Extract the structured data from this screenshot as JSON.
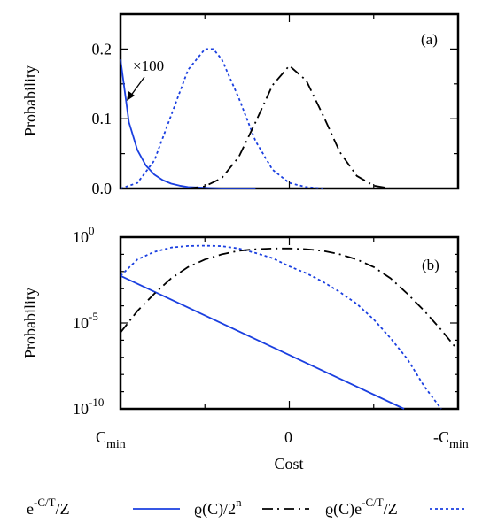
{
  "colors": {
    "blue": "#1a3fe0",
    "black": "#000000"
  },
  "figure": {
    "xlabel": "Cost",
    "x_ticklabels": {
      "cmin_base": "C",
      "cmin_sub": "min",
      "zero": "0",
      "neg_cmin_base": "-C",
      "neg_cmin_sub": "min"
    }
  },
  "legend": {
    "entries": [
      {
        "text_main": "e",
        "text_sup": "-C/T",
        "text_tail": "/Z",
        "line": "solid",
        "color": "#1a3fe0"
      },
      {
        "text_main": "ϱ(C)/2",
        "text_sup": "n",
        "text_tail": "",
        "line": "dashdot",
        "color": "#000000"
      },
      {
        "text_main": "ϱ(C)e",
        "text_sup": "-C/T",
        "text_tail": "/Z",
        "line": "dotted",
        "color": "#1a3fe0"
      }
    ]
  },
  "chart_data": [
    {
      "type": "line",
      "panel_label": "(a)",
      "ylabel": "Probability",
      "yscale": "linear",
      "ylim": [
        0,
        0.25
      ],
      "y_ticklabels": [
        "0.0",
        "0.1",
        "0.2"
      ],
      "xlim": [
        -1,
        1
      ],
      "annotation": "×100",
      "series": [
        {
          "line": "solid",
          "color": "#1a3fe0",
          "scaled_by": 100,
          "x": [
            -1.0,
            -0.95,
            -0.9,
            -0.85,
            -0.8,
            -0.75,
            -0.7,
            -0.65,
            -0.6,
            -0.5,
            -0.4,
            -0.3,
            -0.2
          ],
          "y": [
            0.185,
            0.095,
            0.055,
            0.033,
            0.02,
            0.012,
            0.007,
            0.004,
            0.002,
            0.001,
            0.0,
            0.0,
            0.0
          ]
        },
        {
          "line": "dotted",
          "color": "#1a3fe0",
          "x": [
            -1.0,
            -0.9,
            -0.8,
            -0.7,
            -0.6,
            -0.5,
            -0.45,
            -0.4,
            -0.3,
            -0.2,
            -0.1,
            0.0,
            0.1,
            0.2
          ],
          "y": [
            0.0,
            0.008,
            0.04,
            0.105,
            0.17,
            0.2,
            0.2,
            0.185,
            0.13,
            0.068,
            0.027,
            0.008,
            0.002,
            0.0
          ]
        },
        {
          "line": "dashdot",
          "color": "#000000",
          "x": [
            -0.6,
            -0.5,
            -0.4,
            -0.3,
            -0.2,
            -0.1,
            0.0,
            0.1,
            0.2,
            0.3,
            0.4,
            0.5,
            0.6,
            0.7
          ],
          "y": [
            0.0,
            0.003,
            0.015,
            0.045,
            0.095,
            0.148,
            0.176,
            0.155,
            0.105,
            0.052,
            0.018,
            0.004,
            0.0,
            0.0
          ]
        }
      ]
    },
    {
      "type": "line",
      "panel_label": "(b)",
      "ylabel": "Probability",
      "yscale": "log",
      "ylim": [
        1e-10,
        1
      ],
      "y_ticklabels": [
        {
          "base": "10",
          "exp": "0"
        },
        {
          "base": "10",
          "exp": "-5"
        },
        {
          "base": "10",
          "exp": "-10"
        }
      ],
      "xlim": [
        -1,
        1
      ],
      "series": [
        {
          "line": "solid",
          "color": "#1a3fe0",
          "x": [
            -1.0,
            0.68
          ],
          "y": [
            0.0056,
            1e-10
          ]
        },
        {
          "line": "dotted",
          "color": "#1a3fe0",
          "x": [
            -1.0,
            -0.9,
            -0.8,
            -0.7,
            -0.6,
            -0.5,
            -0.4,
            -0.3,
            -0.2,
            -0.1,
            0.0,
            0.1,
            0.2,
            0.3,
            0.4,
            0.5,
            0.6,
            0.7,
            0.8,
            0.9
          ],
          "y": [
            0.0056,
            0.05,
            0.14,
            0.25,
            0.31,
            0.32,
            0.3,
            0.22,
            0.12,
            0.06,
            0.02,
            0.008,
            0.0025,
            0.00063,
            0.00013,
            1.6e-05,
            1.3e-06,
            7.9e-08,
            2e-09,
            1e-10
          ]
        },
        {
          "line": "dashdot",
          "color": "#000000",
          "x": [
            -1.0,
            -0.9,
            -0.8,
            -0.7,
            -0.6,
            -0.5,
            -0.4,
            -0.3,
            -0.2,
            -0.1,
            0.0,
            0.1,
            0.2,
            0.3,
            0.4,
            0.5,
            0.6,
            0.7,
            0.8,
            0.9,
            1.0
          ],
          "y": [
            2.8e-06,
            5e-05,
            0.0005,
            0.004,
            0.018,
            0.05,
            0.1,
            0.16,
            0.2,
            0.22,
            0.22,
            0.2,
            0.16,
            0.1,
            0.05,
            0.018,
            0.004,
            0.0005,
            5e-05,
            4e-06,
            2.5e-07
          ]
        }
      ]
    }
  ]
}
